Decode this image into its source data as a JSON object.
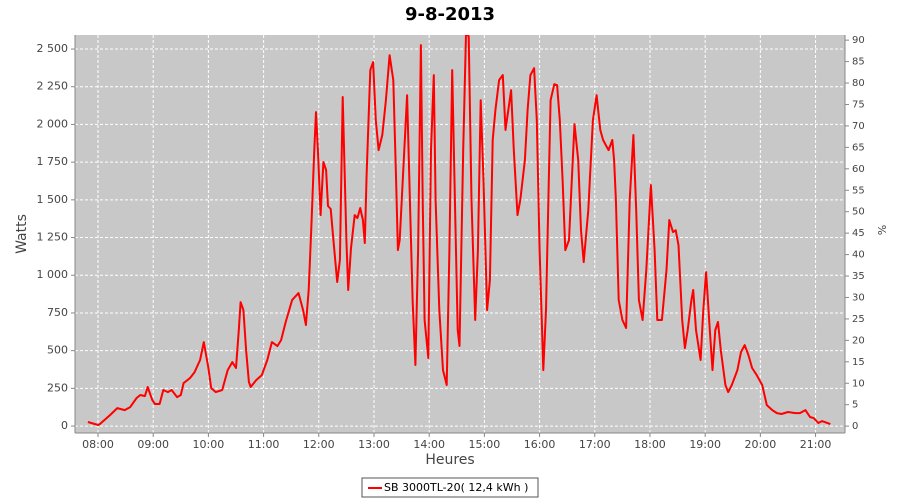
{
  "chart_data": {
    "type": "line",
    "title": "9-8-2013",
    "xlabel": "Heures",
    "ylabel": "Watts",
    "y2label": "%",
    "xlim": [
      455,
      1292
    ],
    "xticks": [
      {
        "value": 480,
        "label": "08:00"
      },
      {
        "value": 540,
        "label": "09:00"
      },
      {
        "value": 600,
        "label": "10:00"
      },
      {
        "value": 660,
        "label": "11:00"
      },
      {
        "value": 720,
        "label": "12:00"
      },
      {
        "value": 780,
        "label": "13:00"
      },
      {
        "value": 840,
        "label": "14:00"
      },
      {
        "value": 900,
        "label": "15:00"
      },
      {
        "value": 960,
        "label": "16:00"
      },
      {
        "value": 1020,
        "label": "17:00"
      },
      {
        "value": 1080,
        "label": "18:00"
      },
      {
        "value": 1140,
        "label": "19:00"
      },
      {
        "value": 1200,
        "label": "20:00"
      },
      {
        "value": 1260,
        "label": "21:00"
      }
    ],
    "ylim": [
      -46,
      2593
    ],
    "yticks": [
      0,
      250,
      500,
      750,
      {
        "value": 1000,
        "label": "1 000"
      },
      {
        "value": 1250,
        "label": "1 250"
      },
      {
        "value": 1500,
        "label": "1 500"
      },
      {
        "value": 1750,
        "label": "1 750"
      },
      {
        "value": 2000,
        "label": "2 000"
      },
      {
        "value": 2250,
        "label": "2 250"
      },
      {
        "value": 2500,
        "label": "2 500"
      }
    ],
    "y2lim": [
      -1.6,
      91.2
    ],
    "y2ticks": [
      0,
      5,
      10,
      15,
      20,
      25,
      30,
      35,
      40,
      45,
      50,
      55,
      60,
      65,
      70,
      75,
      80,
      85,
      90
    ],
    "grid": true,
    "legend": "bottom",
    "x": [
      469,
      480,
      482,
      493,
      501,
      509,
      515,
      522,
      526,
      531,
      534,
      539,
      542,
      547,
      551,
      556,
      560,
      566,
      570,
      573,
      580,
      585,
      591,
      595,
      600,
      603,
      608,
      615,
      621,
      626,
      630,
      633,
      635,
      638,
      641,
      644,
      646,
      652,
      658,
      664,
      669,
      675,
      679,
      684,
      691,
      698,
      703,
      706,
      709,
      712,
      715,
      717,
      719,
      722,
      725,
      728,
      730,
      733,
      736,
      740,
      743,
      746,
      750,
      752,
      755,
      759,
      762,
      765,
      768,
      770,
      772,
      776,
      779,
      782,
      785,
      789,
      793,
      797,
      801,
      804,
      806,
      808,
      813,
      816,
      819,
      822,
      825,
      828,
      831,
      833,
      835,
      839,
      842,
      845,
      847,
      851,
      855,
      859,
      862,
      865,
      868,
      871,
      873,
      877,
      880,
      883,
      886,
      890,
      893,
      896,
      899,
      903,
      906,
      909,
      912,
      916,
      920,
      923,
      926,
      929,
      932,
      936,
      939,
      944,
      947,
      950,
      954,
      957,
      960,
      964,
      967,
      970,
      972,
      976,
      979,
      982,
      985,
      988,
      992,
      995,
      998,
      1002,
      1005,
      1008,
      1013,
      1018,
      1022,
      1026,
      1029,
      1032,
      1035,
      1039,
      1041,
      1043,
      1046,
      1050,
      1054,
      1058,
      1062,
      1065,
      1068,
      1072,
      1076,
      1081,
      1085,
      1088,
      1093,
      1098,
      1101,
      1105,
      1108,
      1111,
      1115,
      1118,
      1121,
      1125,
      1127,
      1130,
      1135,
      1138,
      1141,
      1145,
      1148,
      1151,
      1154,
      1157,
      1162,
      1165,
      1169,
      1175,
      1179,
      1183,
      1187,
      1191,
      1196,
      1202,
      1207,
      1213,
      1218,
      1223,
      1230,
      1238,
      1243,
      1249,
      1254,
      1258,
      1263,
      1267,
      1276
    ],
    "series": [
      {
        "name": "SB 3000TL-20( 12,4 kWh )",
        "color": "#ff0000",
        "values": [
          27,
          7,
          13,
          73,
          119,
          106,
          126,
          186,
          206,
          199,
          259,
          172,
          146,
          146,
          239,
          225,
          239,
          192,
          206,
          285,
          318,
          358,
          438,
          557,
          385,
          252,
          225,
          239,
          371,
          424,
          385,
          637,
          822,
          769,
          504,
          292,
          259,
          305,
          338,
          438,
          557,
          530,
          570,
          690,
          835,
          882,
          769,
          670,
          902,
          1329,
          1817,
          2082,
          1830,
          1399,
          1751,
          1698,
          1459,
          1439,
          1227,
          955,
          1101,
          2182,
          1233,
          902,
          1180,
          1399,
          1379,
          1446,
          1366,
          1214,
          1665,
          2360,
          2413,
          2029,
          1830,
          1930,
          2161,
          2459,
          2294,
          1631,
          1167,
          1233,
          1830,
          2194,
          1499,
          836,
          405,
          1167,
          2526,
          1499,
          703,
          451,
          1830,
          2327,
          1499,
          770,
          371,
          272,
          1167,
          2360,
          1499,
          637,
          531,
          1830,
          2600,
          2585,
          1499,
          703,
          1167,
          2161,
          1631,
          769,
          968,
          1897,
          2095,
          2294,
          2327,
          1963,
          2095,
          2227,
          1830,
          1399,
          1499,
          1764,
          2095,
          2327,
          2373,
          2029,
          1167,
          371,
          769,
          1631,
          2161,
          2267,
          2260,
          2029,
          1631,
          1167,
          1233,
          1631,
          2002,
          1764,
          1299,
          1087,
          1432,
          2029,
          2194,
          1963,
          1897,
          1863,
          1830,
          1897,
          1764,
          1499,
          836,
          703,
          650,
          1499,
          1930,
          1432,
          836,
          703,
          1035,
          1598,
          1167,
          703,
          703,
          1035,
          1366,
          1286,
          1299,
          1200,
          703,
          517,
          637,
          836,
          902,
          637,
          438,
          769,
          1021,
          637,
          371,
          637,
          690,
          504,
          272,
          225,
          272,
          371,
          491,
          537,
          471,
          385,
          338,
          272,
          139,
          106,
          86,
          80,
          93,
          86,
          86,
          106,
          60,
          53,
          20,
          33,
          13
        ]
      }
    ]
  }
}
